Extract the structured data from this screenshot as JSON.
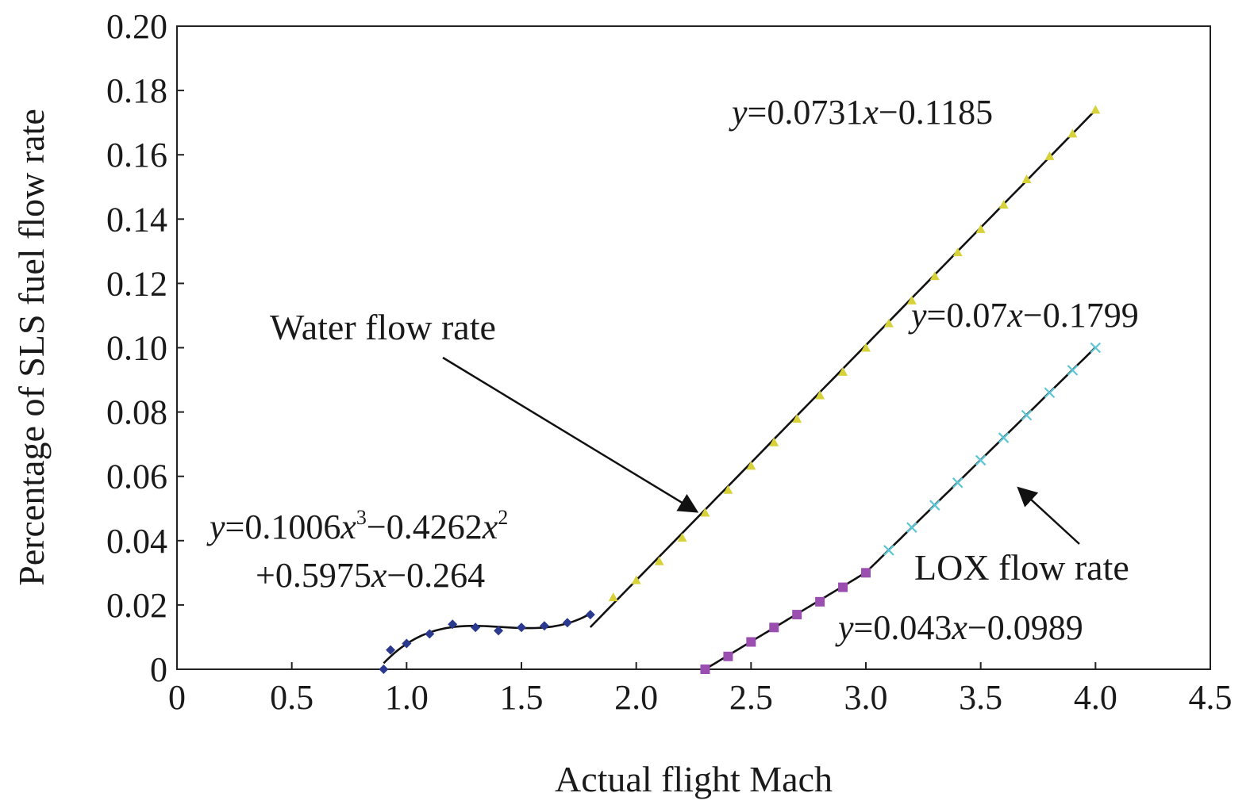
{
  "chart_data": {
    "type": "scatter",
    "xlabel": "Actual flight Mach",
    "ylabel": "Percentage of SLS fuel flow rate",
    "xlim": [
      0,
      4.5
    ],
    "ylim": [
      0,
      0.2
    ],
    "grid": false,
    "x_ticks": [
      "0",
      "0.5",
      "1.0",
      "1.5",
      "2.0",
      "2.5",
      "3.0",
      "3.5",
      "4.0",
      "4.5"
    ],
    "x_tick_values": [
      0,
      0.5,
      1.0,
      1.5,
      2.0,
      2.5,
      3.0,
      3.5,
      4.0,
      4.5
    ],
    "y_ticks": [
      "0",
      "0.02",
      "0.04",
      "0.06",
      "0.08",
      "0.10",
      "0.12",
      "0.14",
      "0.16",
      "0.18",
      "0.20"
    ],
    "y_tick_values": [
      0,
      0.02,
      0.04,
      0.06,
      0.08,
      0.1,
      0.12,
      0.14,
      0.16,
      0.18,
      0.2
    ],
    "series": [
      {
        "marker": "diamond",
        "color": "#2b3a8f",
        "x": [
          0.9,
          0.93,
          1.0,
          1.1,
          1.2,
          1.3,
          1.4,
          1.5,
          1.6,
          1.7,
          1.8
        ],
        "y": [
          0.0,
          0.006,
          0.008,
          0.011,
          0.014,
          0.013,
          0.012,
          0.013,
          0.0135,
          0.0145,
          0.017
        ],
        "fit": {
          "kind": "poly",
          "coeffs": [
            0.1006,
            -0.4262,
            0.5975,
            -0.264
          ],
          "x_range": [
            0.9,
            1.8
          ]
        }
      },
      {
        "marker": "triangle",
        "color": "#d8d23a",
        "x": [
          1.9,
          2.0,
          2.1,
          2.2,
          2.3,
          2.4,
          2.5,
          2.6,
          2.7,
          2.8,
          2.9,
          3.0,
          3.1,
          3.2,
          3.3,
          3.4,
          3.5,
          3.6,
          3.7,
          3.8,
          3.9,
          4.0
        ],
        "y": [
          0.0224,
          0.0277,
          0.0336,
          0.0409,
          0.0487,
          0.0558,
          0.0633,
          0.0706,
          0.0779,
          0.0852,
          0.0925,
          0.1,
          0.1076,
          0.1147,
          0.1223,
          0.1297,
          0.1369,
          0.1445,
          0.1524,
          0.1596,
          0.1666,
          0.174
        ],
        "fit": {
          "kind": "linear",
          "coeffs": [
            0.0731,
            -0.1185
          ],
          "x_range": [
            1.8,
            4.0
          ]
        }
      },
      {
        "marker": "square",
        "color": "#9a4fb0",
        "x": [
          2.3,
          2.4,
          2.5,
          2.6,
          2.7,
          2.8,
          2.9,
          3.0
        ],
        "y": [
          0.0,
          0.004,
          0.0085,
          0.013,
          0.017,
          0.021,
          0.0255,
          0.03
        ],
        "fit": {
          "kind": "linear",
          "coeffs": [
            0.043,
            -0.0989
          ],
          "x_range": [
            2.3,
            3.0
          ]
        }
      },
      {
        "marker": "x",
        "color": "#5cc6d6",
        "x": [
          3.1,
          3.2,
          3.3,
          3.4,
          3.5,
          3.6,
          3.7,
          3.8,
          3.9,
          4.0
        ],
        "y": [
          0.037,
          0.0441,
          0.051,
          0.058,
          0.065,
          0.072,
          0.079,
          0.086,
          0.093,
          0.1
        ],
        "fit": {
          "kind": "linear",
          "coeffs": [
            0.07,
            -0.1799
          ],
          "x_range": [
            3.0,
            4.0
          ]
        }
      }
    ],
    "annotations": {
      "water_label": "Water flow rate",
      "lox_label": "LOX flow rate",
      "eq_water_linear": {
        "y": "y",
        "a": "=0.0731",
        "x": "x",
        "b": "−0.1185"
      },
      "eq_lox_upper": {
        "y": "y",
        "a": "=0.07",
        "x": "x",
        "b": "−0.1799"
      },
      "eq_lox_lower": {
        "y": "y",
        "a": "=0.043",
        "x": "x",
        "b": "−0.0989"
      },
      "eq_cubic_line1": {
        "y": "y",
        "a": "=0.1006",
        "x1": "x",
        "p1": "3",
        "b": "−0.4262",
        "x2": "x",
        "p2": "2"
      },
      "eq_cubic_line2": {
        "a": "+0.5975",
        "x": "x",
        "b": "−0.264"
      }
    }
  }
}
